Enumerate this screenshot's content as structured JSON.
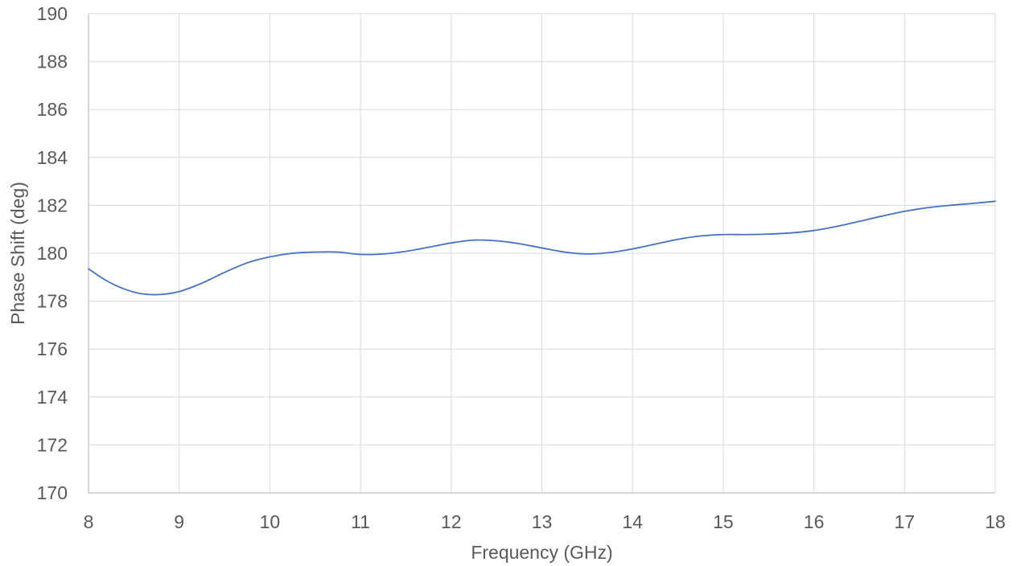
{
  "chart_data": {
    "type": "line",
    "title": "",
    "xlabel": "Frequency (GHz)",
    "ylabel": "Phase Shift (deg)",
    "xlim": [
      8,
      18
    ],
    "ylim": [
      170,
      190
    ],
    "x_ticks": [
      8,
      9,
      10,
      11,
      12,
      13,
      14,
      15,
      16,
      17,
      18
    ],
    "y_ticks": [
      170,
      172,
      174,
      176,
      178,
      180,
      182,
      184,
      186,
      188,
      190
    ],
    "grid": true,
    "legend": "none",
    "series": [
      {
        "color": "#4472c4",
        "x": [
          8,
          8.2,
          8.4,
          8.6,
          8.8,
          9,
          9.25,
          9.5,
          9.75,
          10,
          10.25,
          10.5,
          10.75,
          11,
          11.25,
          11.5,
          11.75,
          12,
          12.25,
          12.5,
          12.75,
          13,
          13.25,
          13.5,
          13.75,
          14,
          14.25,
          14.5,
          14.75,
          15,
          15.25,
          15.5,
          15.75,
          16,
          16.25,
          16.5,
          16.75,
          17,
          17.25,
          17.5,
          17.75,
          18
        ],
        "y": [
          179.35,
          178.85,
          178.5,
          178.3,
          178.28,
          178.4,
          178.75,
          179.2,
          179.6,
          179.85,
          180.0,
          180.05,
          180.05,
          179.95,
          179.97,
          180.08,
          180.25,
          180.43,
          180.55,
          180.52,
          180.4,
          180.22,
          180.05,
          179.97,
          180.03,
          180.18,
          180.38,
          180.58,
          180.72,
          180.78,
          180.78,
          180.8,
          180.85,
          180.95,
          181.12,
          181.33,
          181.55,
          181.75,
          181.9,
          182.0,
          182.08,
          182.17
        ]
      }
    ]
  }
}
